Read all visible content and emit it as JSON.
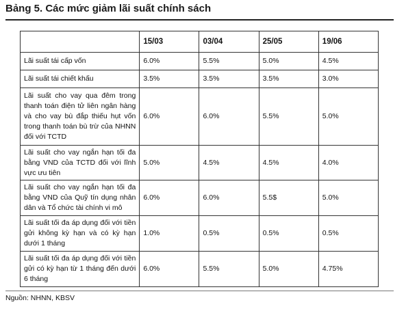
{
  "title": "Bảng 5. Các mức giảm lãi suất chính sách",
  "table": {
    "headers": [
      "",
      "15/03",
      "03/04",
      "25/05",
      "19/06"
    ],
    "rows": [
      {
        "label": "Lãi suất tái cấp vốn",
        "values": [
          "6.0%",
          "5.5%",
          "5.0%",
          "4.5%"
        ]
      },
      {
        "label": "Lãi suất tái chiết khấu",
        "values": [
          "3.5%",
          "3.5%",
          "3.5%",
          "3.0%"
        ]
      },
      {
        "label": "Lãi suất cho vay qua đêm trong thanh toán điện tử liên ngân hàng và cho vay bù đắp thiếu hụt vốn trong thanh toán bù trừ của NHNN đối với TCTD",
        "values": [
          "6.0%",
          "6.0%",
          "5.5%",
          "5.0%"
        ]
      },
      {
        "label": "Lãi suất cho vay ngắn hạn tối đa bằng VND của TCTD đối với lĩnh vực ưu tiên",
        "values": [
          "5.0%",
          "4.5%",
          "4.5%",
          "4.0%"
        ]
      },
      {
        "label": "Lãi suất cho vay ngắn hạn tối đa bằng VND của Quỹ tín dụng nhân dân và Tổ chức tài chính vi mô",
        "values": [
          "6.0%",
          "6.0%",
          "5.5$",
          "5.0%"
        ]
      },
      {
        "label": "Lãi suất tối đa áp dụng đối với tiền gửi không kỳ hạn và có kỳ hạn dưới 1 tháng",
        "values": [
          "1.0%",
          "0.5%",
          "0.5%",
          "0.5%"
        ]
      },
      {
        "label": "Lãi suất tối đa áp dụng đối với tiền gửi có kỳ hạn từ 1 tháng đến dưới 6 tháng",
        "values": [
          "6.0%",
          "5.5%",
          "5.0%",
          "4.75%"
        ]
      }
    ]
  },
  "source": "Nguồn: NHNN, KBSV"
}
